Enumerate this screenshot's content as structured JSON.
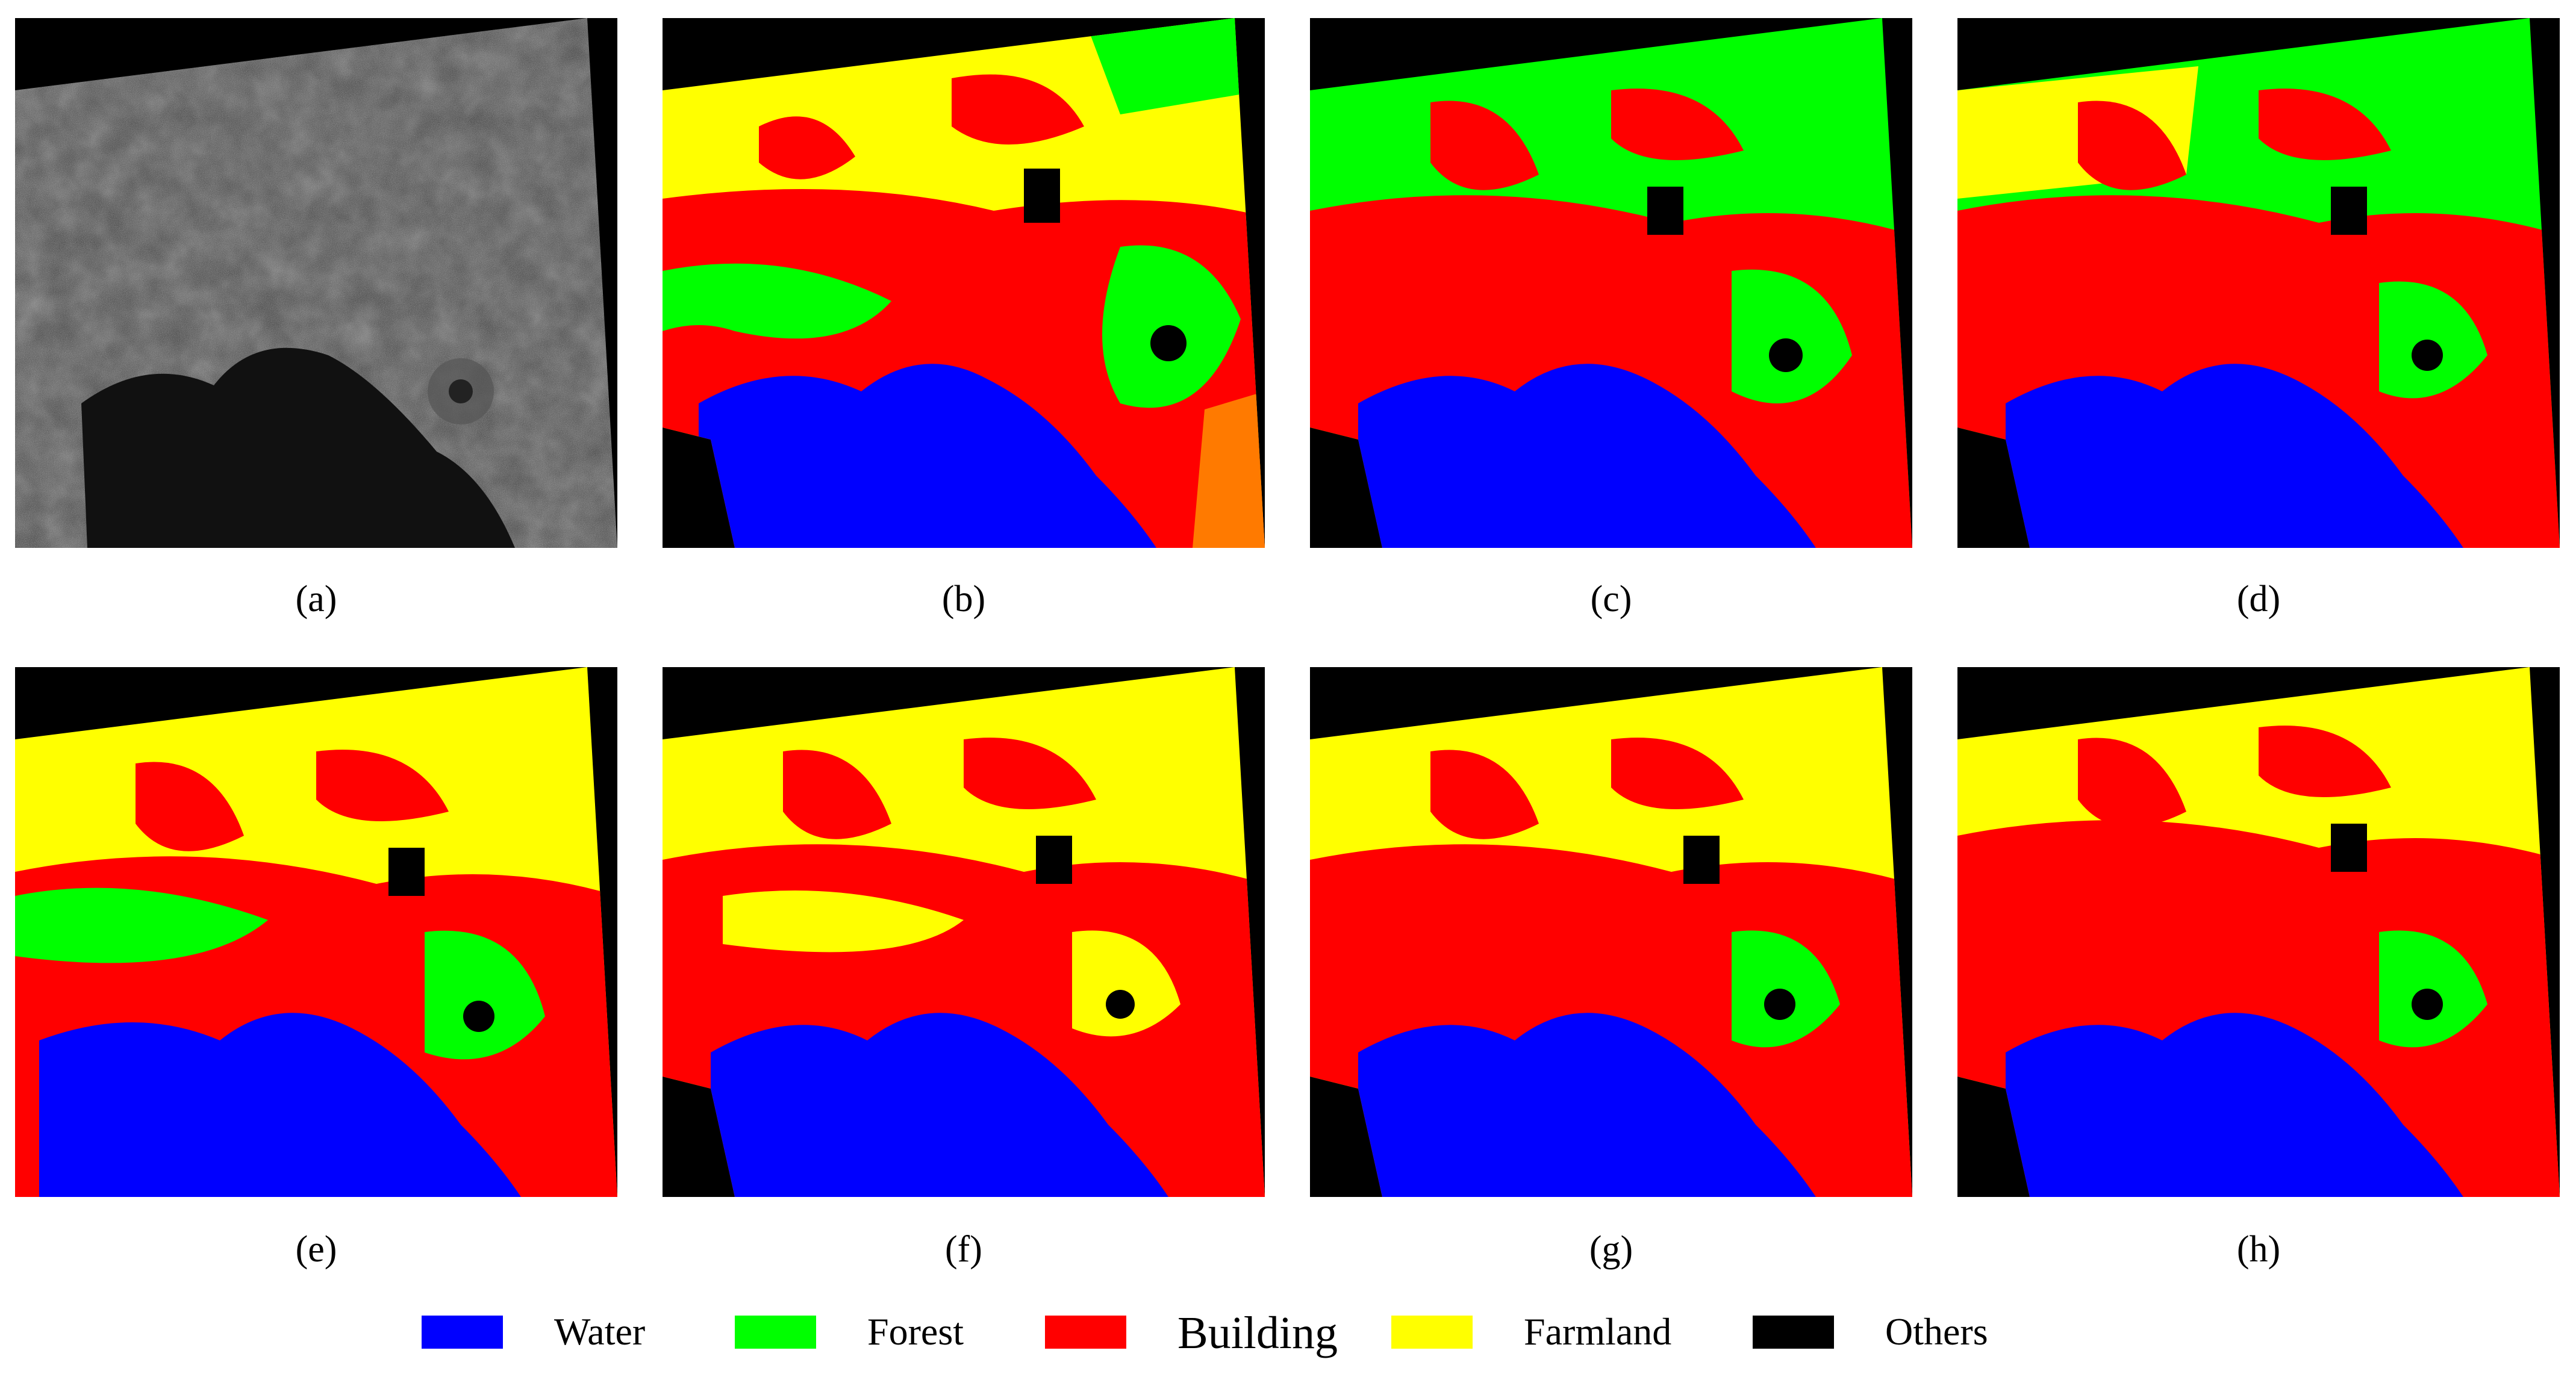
{
  "panels": [
    {
      "caption": "(a)",
      "kind": "sar"
    },
    {
      "caption": "(b)",
      "kind": "map"
    },
    {
      "caption": "(c)",
      "kind": "map"
    },
    {
      "caption": "(d)",
      "kind": "map"
    },
    {
      "caption": "(e)",
      "kind": "map"
    },
    {
      "caption": "(f)",
      "kind": "map"
    },
    {
      "caption": "(g)",
      "kind": "map"
    },
    {
      "caption": "(h)",
      "kind": "map"
    }
  ],
  "legend": [
    {
      "label": "Water",
      "color": "#0000ff"
    },
    {
      "label": "Forest",
      "color": "#00ff00"
    },
    {
      "label": "Building",
      "color": "#ff0000"
    },
    {
      "label": "Farmland",
      "color": "#ffff00"
    },
    {
      "label": "Others",
      "color": "#000000"
    }
  ]
}
